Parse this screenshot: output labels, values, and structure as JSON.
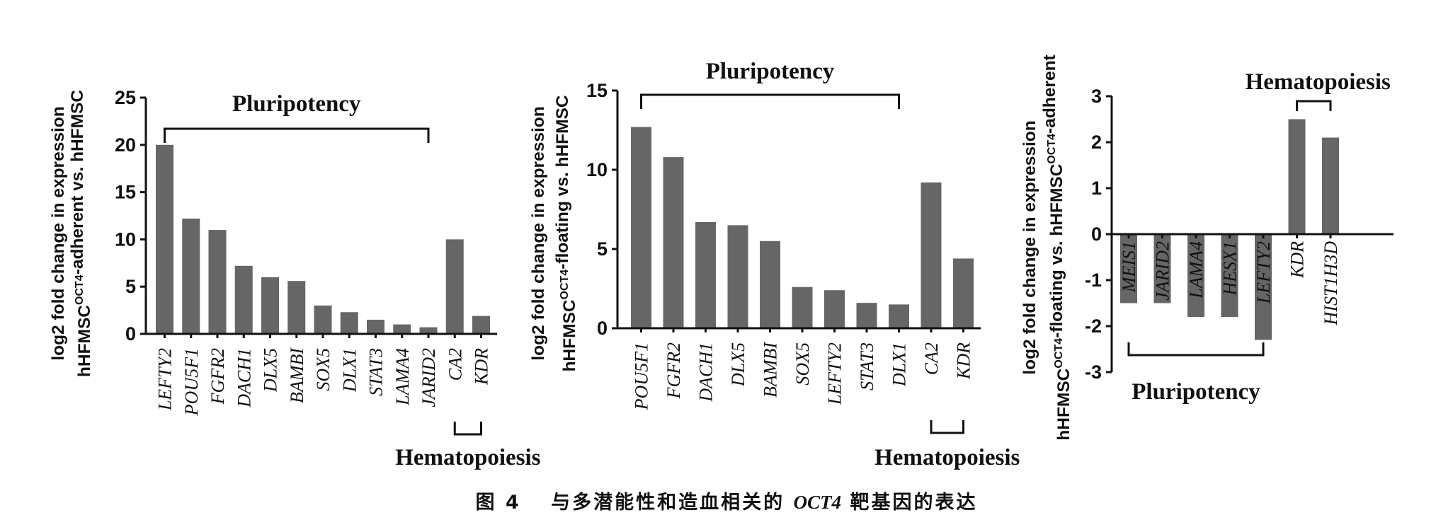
{
  "figure": {
    "caption_prefix": "图 4",
    "caption_middle": "与多潜能性和造血相关的",
    "caption_gene": "OCT4",
    "caption_suffix": "靶基因的表达"
  },
  "chart_data": [
    {
      "type": "bar",
      "ylabel_line1": "log2 fold change in expression",
      "ylabel_line2_pre": "hHFMSC",
      "ylabel_line2_sup": "OCT4",
      "ylabel_line2_post": "-adherent vs. hHFMSC",
      "ylim": [
        0,
        25
      ],
      "yticks": [
        0,
        5,
        10,
        15,
        20,
        25
      ],
      "categories": [
        "LEFTY2",
        "POU5F1",
        "FGFR2",
        "DACH1",
        "DLX5",
        "BAMBI",
        "SOX5",
        "DLX1",
        "STAT3",
        "LAMA4",
        "JARID2",
        "CA2",
        "KDR"
      ],
      "values": [
        20.0,
        12.2,
        11.0,
        7.2,
        6.0,
        5.6,
        3.0,
        2.3,
        1.5,
        1.0,
        0.7,
        10.0,
        1.9
      ],
      "groups": [
        {
          "label": "Pluripotency",
          "from": 0,
          "to": 10,
          "side": "top"
        },
        {
          "label": "Hematopoiesis",
          "from": 11,
          "to": 12,
          "side": "bottom"
        }
      ]
    },
    {
      "type": "bar",
      "ylabel_line1": "log2 fold change in expression",
      "ylabel_line2_pre": "hHFMSC",
      "ylabel_line2_sup": "OCT4",
      "ylabel_line2_post": "-floating vs. hHFMSC",
      "ylim": [
        0,
        15
      ],
      "yticks": [
        0,
        5,
        10,
        15
      ],
      "categories": [
        "POU5F1",
        "FGFR2",
        "DACH1",
        "DLX5",
        "BAMBI",
        "SOX5",
        "LEFTY2",
        "STAT3",
        "DLX1",
        "CA2",
        "KDR"
      ],
      "values": [
        12.7,
        10.8,
        6.7,
        6.5,
        5.5,
        2.6,
        2.4,
        1.6,
        1.5,
        9.2,
        4.4
      ],
      "groups": [
        {
          "label": "Pluripotency",
          "from": 0,
          "to": 8,
          "side": "top"
        },
        {
          "label": "Hematopoiesis",
          "from": 9,
          "to": 10,
          "side": "bottom"
        }
      ]
    },
    {
      "type": "bar",
      "ylabel_line1": "log2 fold change in expression",
      "ylabel_line2_pre": "hHFMSC",
      "ylabel_line2_sup": "OCT4",
      "ylabel_line2_post": "-floating vs. hHFMSC",
      "ylabel_line2_sup2": "OCT4",
      "ylabel_line2_post2": "-adherent",
      "ylim": [
        -3,
        3
      ],
      "yticks": [
        -3,
        -2,
        -1,
        0,
        1,
        2,
        3
      ],
      "categories": [
        "MEIS1",
        "JARID2",
        "LAMA4",
        "HESX1",
        "LEFTY2",
        "KDR",
        "HIST1H3D"
      ],
      "values": [
        -1.5,
        -1.5,
        -1.8,
        -1.8,
        -2.3,
        2.5,
        2.1
      ],
      "groups": [
        {
          "label": "Pluripotency",
          "from": 0,
          "to": 4,
          "side": "bottom"
        },
        {
          "label": "Hematopoiesis",
          "from": 5,
          "to": 6,
          "side": "top"
        }
      ]
    }
  ]
}
